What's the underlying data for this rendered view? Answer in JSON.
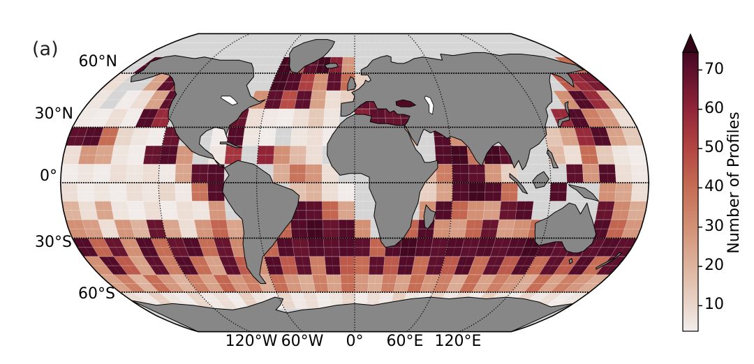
{
  "panel_label": "(a)",
  "map": {
    "lat_tick_labels": [
      "60°N",
      "30°N",
      "0°",
      "30°S",
      "60°S"
    ],
    "lon_tick_labels": [
      "120°W",
      "60°W",
      "0°",
      "60°E",
      "120°E"
    ]
  },
  "colors": {
    "background": "#ffffff",
    "ocean": "#d5d5d5",
    "land": "#878787",
    "coastline": "#000000",
    "graticule": "#000000",
    "lake": "#ffffff",
    "black_sea_fill": "#4d0a21"
  },
  "chart_data": {
    "type": "heatmap",
    "title": "",
    "projection": "Robinson",
    "variable": "Number of Profiles",
    "lon_bin_deg": 10,
    "lat_bin_deg": 10,
    "lon_start": -180,
    "lat_start": 90,
    "graticule": {
      "lon_interval_deg": 60,
      "lat_interval_deg": 30
    },
    "colorbar": {
      "label": "Number of Profiles",
      "ticks": [
        10,
        20,
        30,
        40,
        50,
        60,
        70
      ],
      "tick_labels": [
        "10",
        "20",
        "30",
        "40",
        "50",
        "60",
        "70"
      ],
      "vmin": 3.5,
      "vmax": 74.5,
      "extend": "max",
      "extend_color": "#330617",
      "colormap_stops": [
        [
          0.0,
          "#f2eeec"
        ],
        [
          0.09,
          "#e9d6cb"
        ],
        [
          0.23,
          "#deb49e"
        ],
        [
          0.37,
          "#d29176"
        ],
        [
          0.52,
          "#c56c54"
        ],
        [
          0.66,
          "#b24441"
        ],
        [
          0.8,
          "#8f2438"
        ],
        [
          0.945,
          "#5a0f2b"
        ],
        [
          1.0,
          "#43081f"
        ]
      ]
    },
    "grid": [
      [
        null,
        null,
        null,
        null,
        null,
        null,
        null,
        null,
        null,
        null,
        null,
        null,
        null,
        null,
        null,
        null,
        null,
        null,
        null,
        null,
        null,
        null,
        null,
        null,
        null,
        null,
        null,
        null,
        null,
        null,
        null,
        null,
        null,
        null,
        null,
        null
      ],
      [
        null,
        null,
        null,
        null,
        null,
        null,
        null,
        null,
        null,
        null,
        null,
        null,
        null,
        null,
        null,
        null,
        null,
        null,
        null,
        null,
        null,
        null,
        null,
        null,
        null,
        null,
        null,
        null,
        null,
        null,
        null,
        null,
        null,
        null,
        null,
        null
      ],
      [
        null,
        72,
        null,
        null,
        null,
        null,
        null,
        null,
        null,
        null,
        null,
        null,
        75,
        45,
        70,
        75,
        62,
        28,
        null,
        null,
        null,
        null,
        null,
        null,
        null,
        null,
        null,
        null,
        null,
        null,
        null,
        null,
        null,
        null,
        null,
        40
      ],
      [
        8,
        null,
        null,
        25,
        70,
        55,
        null,
        null,
        null,
        null,
        null,
        null,
        75,
        72,
        52,
        30,
        70,
        40,
        12,
        null,
        null,
        null,
        null,
        null,
        null,
        null,
        null,
        null,
        null,
        null,
        null,
        null,
        null,
        45,
        58,
        65
      ],
      [
        6,
        null,
        4,
        8,
        25,
        70,
        null,
        null,
        null,
        null,
        null,
        30,
        70,
        48,
        70,
        25,
        8,
        12,
        70,
        65,
        50,
        72,
        null,
        null,
        null,
        null,
        null,
        null,
        null,
        null,
        null,
        null,
        30,
        72,
        58,
        22
      ],
      [
        5,
        4,
        8,
        4,
        72,
        58,
        null,
        null,
        null,
        null,
        68,
        8,
        5,
        4,
        8,
        14,
        6,
        null,
        62,
        70,
        68,
        70,
        null,
        null,
        null,
        null,
        null,
        null,
        null,
        null,
        null,
        58,
        72,
        35,
        28,
        8
      ],
      [
        70,
        72,
        40,
        10,
        6,
        4,
        68,
        null,
        null,
        4,
        72,
        6,
        4,
        null,
        6,
        8,
        4,
        null,
        null,
        null,
        null,
        20,
        null,
        72,
        30,
        null,
        null,
        null,
        null,
        null,
        15,
        25,
        58,
        72,
        25,
        14
      ],
      [
        8,
        28,
        24,
        6,
        4,
        68,
        72,
        28,
        null,
        6,
        55,
        null,
        60,
        30,
        18,
        8,
        null,
        null,
        null,
        null,
        null,
        null,
        null,
        72,
        75,
        38,
        75,
        70,
        null,
        null,
        18,
        8,
        40,
        14,
        6,
        4
      ],
      [
        4,
        6,
        4,
        8,
        6,
        8,
        5,
        24,
        70,
        72,
        null,
        null,
        null,
        22,
        38,
        28,
        8,
        null,
        null,
        null,
        null,
        null,
        18,
        35,
        72,
        70,
        28,
        12,
        null,
        null,
        null,
        70,
        28,
        72,
        8,
        5
      ],
      [
        8,
        4,
        6,
        4,
        8,
        6,
        10,
        5,
        38,
        72,
        null,
        null,
        null,
        null,
        16,
        20,
        8,
        4,
        null,
        null,
        null,
        null,
        12,
        25,
        72,
        75,
        72,
        40,
        null,
        null,
        72,
        null,
        null,
        30,
        24,
        8
      ],
      [
        20,
        8,
        24,
        6,
        4,
        8,
        4,
        8,
        6,
        28,
        null,
        null,
        null,
        null,
        72,
        70,
        42,
        24,
        null,
        null,
        null,
        null,
        30,
        72,
        42,
        30,
        26,
        68,
        72,
        null,
        null,
        null,
        null,
        68,
        32,
        22
      ],
      [
        30,
        26,
        8,
        28,
        20,
        68,
        24,
        8,
        28,
        42,
        24,
        null,
        null,
        42,
        72,
        75,
        68,
        72,
        30,
        null,
        null,
        42,
        72,
        30,
        26,
        42,
        68,
        26,
        30,
        40,
        null,
        null,
        null,
        72,
        42,
        28
      ],
      [
        72,
        42,
        68,
        30,
        72,
        40,
        68,
        72,
        40,
        68,
        32,
        null,
        42,
        72,
        68,
        72,
        70,
        72,
        70,
        42,
        72,
        75,
        72,
        70,
        72,
        70,
        72,
        70,
        72,
        75,
        72,
        70,
        72,
        70,
        72,
        70
      ],
      [
        30,
        72,
        45,
        25,
        70,
        35,
        72,
        40,
        25,
        70,
        45,
        30,
        72,
        45,
        70,
        35,
        72,
        45,
        40,
        70,
        45,
        72,
        40,
        70,
        45,
        72,
        40,
        70,
        45,
        72,
        40,
        70,
        45,
        72,
        40,
        70
      ],
      [
        25,
        35,
        20,
        40,
        28,
        20,
        35,
        25,
        42,
        28,
        35,
        22,
        40,
        28,
        22,
        35,
        25,
        40,
        28,
        22,
        35,
        25,
        40,
        28,
        35,
        22,
        40,
        25,
        35,
        28,
        22,
        40,
        25,
        35,
        28,
        22
      ],
      [
        8,
        5,
        12,
        6,
        4,
        10,
        5,
        8,
        4,
        12,
        6,
        4,
        10,
        5,
        8,
        4,
        6,
        10,
        4,
        8,
        5,
        12,
        6,
        4,
        10,
        5,
        8,
        4,
        12,
        6,
        4,
        10,
        5,
        8,
        4,
        6
      ],
      [
        null,
        null,
        null,
        null,
        null,
        null,
        null,
        null,
        null,
        null,
        null,
        null,
        null,
        null,
        null,
        null,
        null,
        null,
        null,
        null,
        null,
        null,
        null,
        null,
        null,
        null,
        null,
        null,
        null,
        null,
        null,
        null,
        null,
        null,
        null,
        null
      ],
      [
        null,
        null,
        null,
        null,
        null,
        null,
        null,
        null,
        null,
        null,
        null,
        null,
        null,
        null,
        null,
        null,
        null,
        null,
        null,
        null,
        null,
        null,
        null,
        null,
        null,
        null,
        null,
        null,
        null,
        null,
        null,
        null,
        null,
        null,
        null,
        null
      ]
    ]
  }
}
